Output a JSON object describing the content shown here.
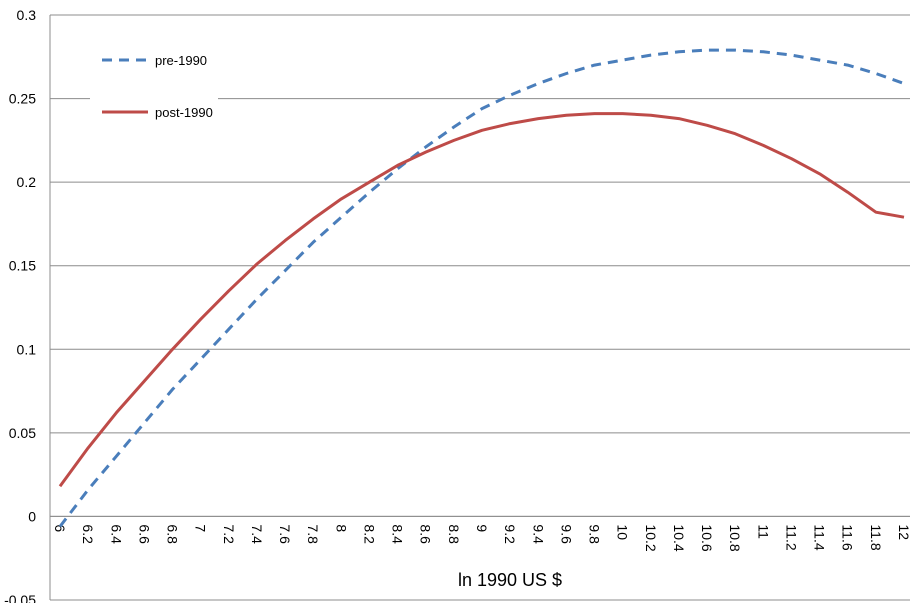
{
  "chart_data": {
    "type": "line",
    "title": "",
    "xlabel": "ln 1990 US $",
    "ylabel": "",
    "xlim": [
      6,
      12
    ],
    "ylim": [
      -0.05,
      0.3
    ],
    "grid": true,
    "legend_position": "top-left",
    "x_ticks": [
      "6",
      "6.2",
      "6.4",
      "6.6",
      "6.8",
      "7",
      "7.2",
      "7.4",
      "7.6",
      "7.8",
      "8",
      "8.2",
      "8.4",
      "8.6",
      "8.8",
      "9",
      "9.2",
      "9.4",
      "9.6",
      "9.8",
      "10",
      "10.2",
      "10.4",
      "10.6",
      "10.8",
      "11",
      "11.2",
      "11.4",
      "11.6",
      "11.8",
      "12"
    ],
    "y_ticks": [
      "0.3",
      "0.25",
      "0.2",
      "0.15",
      "0.1",
      "0.05",
      "0",
      "-0.05"
    ],
    "x": [
      6,
      6.2,
      6.4,
      6.6,
      6.8,
      7,
      7.2,
      7.4,
      7.6,
      7.8,
      8,
      8.2,
      8.4,
      8.6,
      8.8,
      9,
      9.2,
      9.4,
      9.6,
      9.8,
      10,
      10.2,
      10.4,
      10.6,
      10.8,
      11,
      11.2,
      11.4,
      11.6,
      11.8,
      12
    ],
    "series": [
      {
        "name": "pre-1990",
        "color": "#4a7ebb",
        "dash": "dashed",
        "values": [
          -0.006,
          0.016,
          0.036,
          0.056,
          0.076,
          0.094,
          0.112,
          0.13,
          0.147,
          0.164,
          0.179,
          0.194,
          0.208,
          0.221,
          0.233,
          0.244,
          0.252,
          0.259,
          0.265,
          0.27,
          0.273,
          0.276,
          0.278,
          0.279,
          0.279,
          0.278,
          0.276,
          0.273,
          0.27,
          0.265,
          0.259
        ]
      },
      {
        "name": "post-1990",
        "color": "#be4b48",
        "dash": "solid",
        "values": [
          0.018,
          0.041,
          0.062,
          0.081,
          0.1,
          0.118,
          0.135,
          0.151,
          0.165,
          0.178,
          0.19,
          0.2,
          0.21,
          0.218,
          0.225,
          0.231,
          0.235,
          0.238,
          0.24,
          0.241,
          0.241,
          0.24,
          0.238,
          0.234,
          0.229,
          0.222,
          0.214,
          0.205,
          0.194,
          0.182,
          0.179
        ]
      }
    ]
  }
}
